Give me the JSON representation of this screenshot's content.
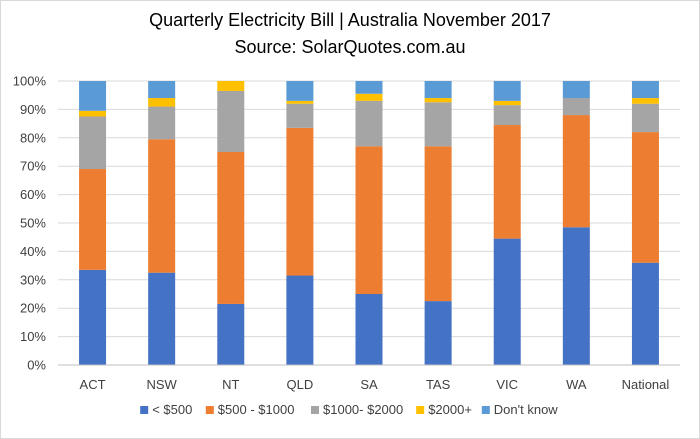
{
  "chart_data": {
    "type": "bar",
    "stacked": true,
    "percent": true,
    "title": "Quarterly Electricity Bill | Australia November 2017",
    "subtitle": "Source: SolarQuotes.com.au",
    "xlabel": "",
    "ylabel": "",
    "ylim": [
      0,
      100
    ],
    "yticks": [
      "0%",
      "10%",
      "20%",
      "30%",
      "40%",
      "50%",
      "60%",
      "70%",
      "80%",
      "90%",
      "100%"
    ],
    "grid": true,
    "legend": "bottom",
    "categories": [
      "ACT",
      "NSW",
      "NT",
      "QLD",
      "SA",
      "TAS",
      "VIC",
      "WA",
      "National"
    ],
    "series": [
      {
        "name": "< $500",
        "color": "#4472c4",
        "values": [
          33.5,
          32.5,
          21.5,
          31.5,
          25,
          22.5,
          44.5,
          48.5,
          36
        ]
      },
      {
        "name": "$500 - $1000",
        "color": "#ed7d31",
        "values": [
          35.5,
          47,
          53.5,
          52,
          52,
          54.5,
          40,
          39.5,
          46
        ]
      },
      {
        "name": "$1000- $2000",
        "color": "#a5a5a5",
        "values": [
          18.5,
          11.5,
          21.5,
          8.5,
          16,
          15.5,
          7,
          6,
          10
        ]
      },
      {
        "name": "$2000+",
        "color": "#ffc000",
        "values": [
          2,
          3,
          3.5,
          1,
          2.5,
          1.5,
          1.5,
          0,
          2
        ]
      },
      {
        "name": "Don't know",
        "color": "#5b9bd5",
        "values": [
          10.5,
          6,
          0,
          7,
          4.5,
          6,
          7,
          6,
          6
        ]
      }
    ]
  }
}
